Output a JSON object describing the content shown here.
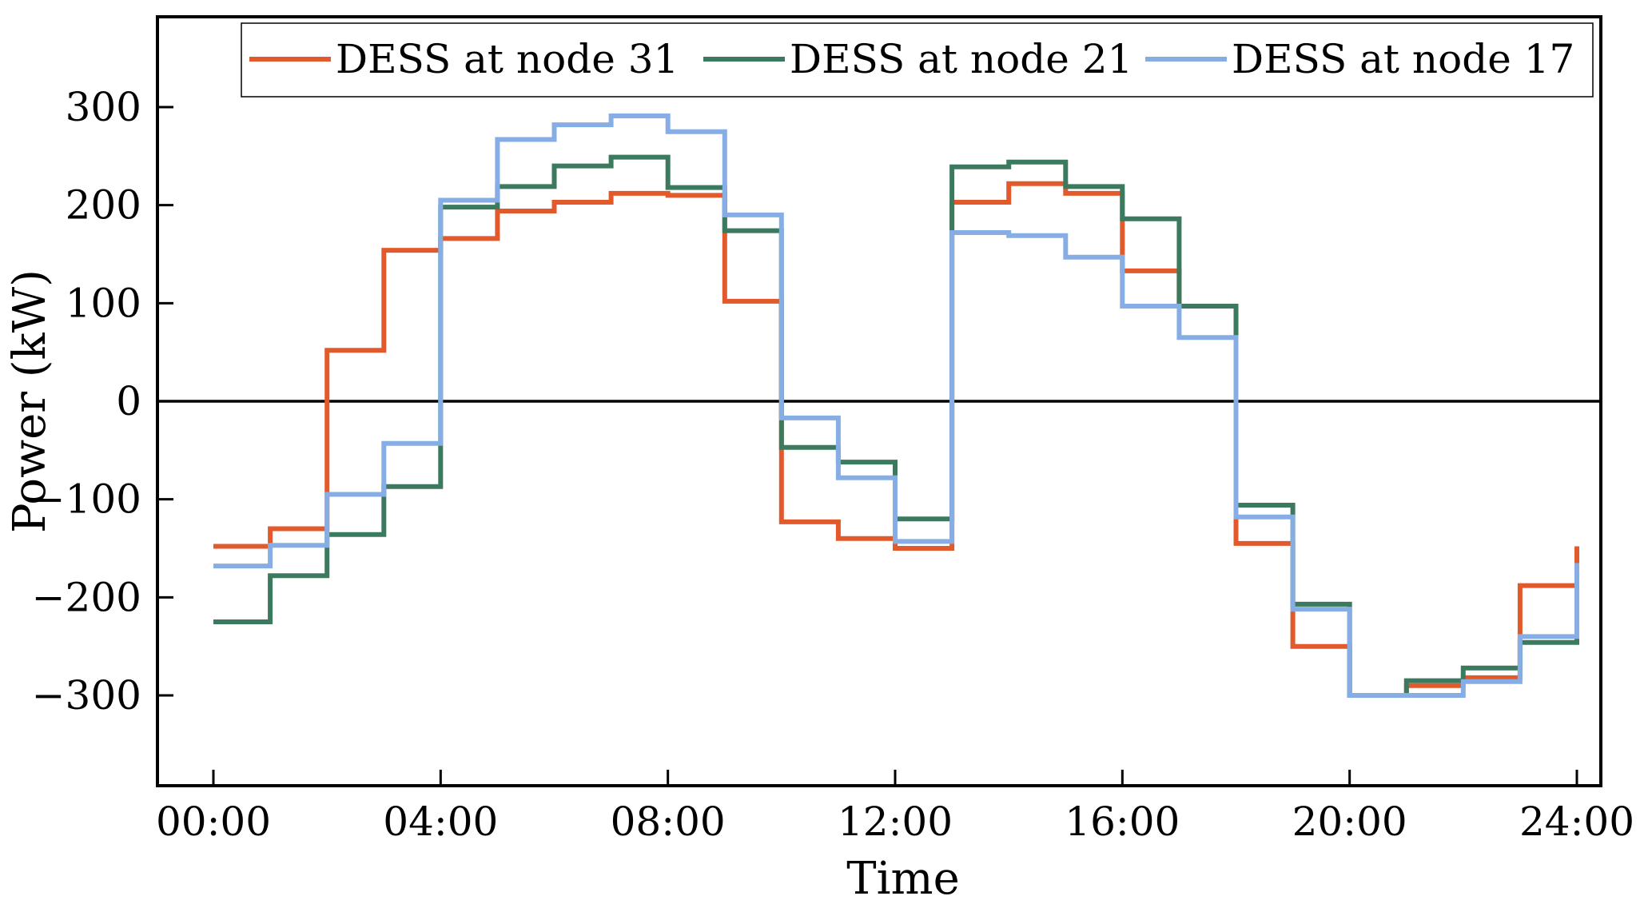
{
  "chart_data": {
    "type": "line",
    "step": true,
    "title": "",
    "xlabel": "Time",
    "ylabel": "Power (kW)",
    "xlim": [
      0,
      24
    ],
    "ylim": [
      -390,
      390
    ],
    "x_ticks": [
      0,
      4,
      8,
      12,
      16,
      20,
      24
    ],
    "x_tick_labels": [
      "00:00",
      "04:00",
      "08:00",
      "12:00",
      "16:00",
      "20:00",
      "24:00"
    ],
    "y_ticks": [
      300,
      200,
      100,
      0,
      -100,
      -200,
      -300
    ],
    "y_tick_labels": [
      "300",
      "200",
      "100",
      "0",
      "−100",
      "−200",
      "−300"
    ],
    "zero_line": true,
    "legend_position": "top-right",
    "series": [
      {
        "name": "DESS at node 31",
        "color": "#E25A2B",
        "values": [
          -148,
          -130,
          52,
          154,
          166,
          194,
          203,
          212,
          210,
          102,
          -123,
          -140,
          -150,
          203,
          222,
          212,
          133,
          97,
          -145,
          -250,
          -300,
          -290,
          -282,
          -188,
          -148
        ]
      },
      {
        "name": "DESS at node 21",
        "color": "#3B7A5E",
        "values": [
          -225,
          -178,
          -136,
          -87,
          198,
          219,
          240,
          249,
          218,
          174,
          -47,
          -62,
          -120,
          239,
          244,
          219,
          186,
          97,
          -106,
          -207,
          -300,
          -285,
          -272,
          -246,
          -168
        ]
      },
      {
        "name": "DESS at node 17",
        "color": "#86AEE4",
        "values": [
          -168,
          -147,
          -95,
          -43,
          205,
          267,
          282,
          291,
          275,
          190,
          -17,
          -78,
          -143,
          172,
          169,
          147,
          97,
          65,
          -118,
          -212,
          -300,
          -300,
          -286,
          -240,
          -165
        ]
      }
    ]
  }
}
